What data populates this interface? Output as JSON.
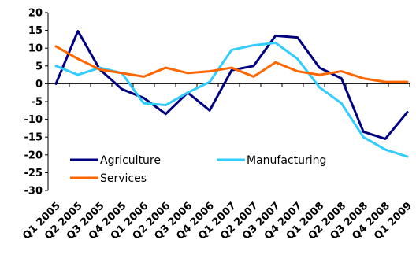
{
  "chart_data": {
    "type": "line",
    "categories": [
      "Q1 2005",
      "Q2 2005",
      "Q3 2005",
      "Q4 2005",
      "Q1 2006",
      "Q2 2006",
      "Q3 2006",
      "Q4 2006",
      "Q1 2007",
      "Q2 2007",
      "Q3 2007",
      "Q4 2007",
      "Q1 2008",
      "Q2 2008",
      "Q3 2008",
      "Q4 2008",
      "Q1 2009"
    ],
    "series": [
      {
        "name": "Agriculture",
        "color": "#000080",
        "values": [
          0,
          14.8,
          4,
          -1.5,
          -4,
          -8.5,
          -2.5,
          -7.5,
          3.8,
          5,
          13.5,
          13,
          4.5,
          1.5,
          -13.5,
          -15.5,
          -8
        ]
      },
      {
        "name": "Manufacturing",
        "color": "#33CCFF",
        "values": [
          5,
          2.5,
          4.5,
          3,
          -5.5,
          -6,
          -2.5,
          0.5,
          9.5,
          10.8,
          11.5,
          7,
          -1,
          -5.5,
          -15,
          -18.5,
          -20.5
        ]
      },
      {
        "name": "Services",
        "color": "#FF6600",
        "values": [
          10.5,
          7,
          4,
          3,
          2,
          4.5,
          3,
          3.5,
          4.5,
          2,
          6,
          3.5,
          2.5,
          3.5,
          1.5,
          0.5,
          0.5
        ]
      }
    ],
    "ylim": [
      -30,
      20
    ],
    "yticks": [
      20,
      15,
      10,
      5,
      0,
      -5,
      -10,
      -15,
      -20,
      -25,
      -30
    ],
    "title": "",
    "xlabel": "",
    "ylabel": "",
    "grid": false,
    "legend_placement": "inside-bottom-left"
  }
}
